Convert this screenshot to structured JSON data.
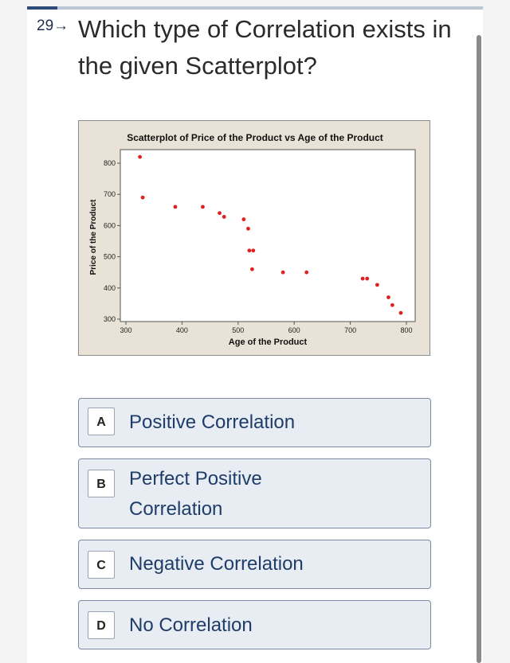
{
  "question": {
    "number": "29→",
    "text": "Which type of Correlation exists in the given Scatterplot?"
  },
  "chart_data": {
    "type": "scatter",
    "title": "Scatterplot of Price of the Product vs Age of the Product",
    "xlabel": "Age of the Product",
    "ylabel": "Price of the Product",
    "xlim": [
      300,
      800
    ],
    "ylim": [
      300,
      800
    ],
    "xticks": [
      "300",
      "400",
      "500",
      "600",
      "700",
      "800"
    ],
    "yticks": [
      "300",
      "400",
      "500",
      "600",
      "700",
      "800"
    ],
    "grid": false,
    "point_color": "#e02020",
    "points": [
      {
        "x": 325,
        "y": 820
      },
      {
        "x": 330,
        "y": 690
      },
      {
        "x": 388,
        "y": 660
      },
      {
        "x": 437,
        "y": 660
      },
      {
        "x": 467,
        "y": 640
      },
      {
        "x": 475,
        "y": 628
      },
      {
        "x": 510,
        "y": 620
      },
      {
        "x": 518,
        "y": 590
      },
      {
        "x": 520,
        "y": 520
      },
      {
        "x": 527,
        "y": 520
      },
      {
        "x": 525,
        "y": 460
      },
      {
        "x": 580,
        "y": 450
      },
      {
        "x": 622,
        "y": 450
      },
      {
        "x": 722,
        "y": 430
      },
      {
        "x": 730,
        "y": 430
      },
      {
        "x": 748,
        "y": 410
      },
      {
        "x": 768,
        "y": 370
      },
      {
        "x": 775,
        "y": 345
      },
      {
        "x": 790,
        "y": 320
      }
    ]
  },
  "options": [
    {
      "letter": "A",
      "text": "Positive Correlation"
    },
    {
      "letter": "B",
      "text": "Perfect Positive Correlation"
    },
    {
      "letter": "C",
      "text": "Negative Correlation"
    },
    {
      "letter": "D",
      "text": "No Correlation"
    }
  ]
}
